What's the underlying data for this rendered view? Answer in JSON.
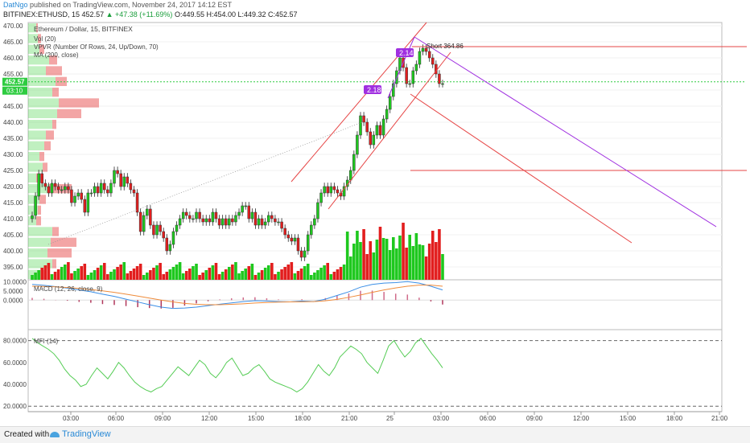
{
  "header": {
    "author": "DatNgo",
    "published": "published on TradingView.com, November 24, 2017 14:12 EST",
    "symbol": "BITFINEX:ETHUSD, 15",
    "last": "452.57",
    "change": "+47.38 (+11.69%)",
    "ohlc": "O:449.55 H:454.00 L:449.32 C:452.57"
  },
  "footer": {
    "made_with": "Created with",
    "brand": "TradingView"
  },
  "chart_data": [
    {
      "type": "candlestick",
      "title": "Ethereum / Dollar, 15, BITFINEX",
      "indicators": [
        "Vol (20)",
        "VPVR (Number Of Rows, 24, Up/Down, 70)",
        "MA (200, close)"
      ],
      "ylim": [
        391,
        471
      ],
      "y_ticks": [
        395,
        400,
        405,
        410,
        415,
        420,
        425,
        430,
        435,
        440,
        445,
        450,
        455,
        460,
        465,
        470
      ],
      "x_ticks": [
        "03:00",
        "06:00",
        "09:00",
        "12:00",
        "15:00",
        "18:00",
        "21:00",
        "25",
        "03:00",
        "06:00",
        "09:00",
        "12:00",
        "15:00",
        "18:00",
        "21:00"
      ],
      "last_price": "452.57",
      "countdown": "03:10",
      "annotations": [
        "Short 364.86",
        "2.14",
        "2.18"
      ],
      "colors": {
        "up": "#1ec81e",
        "down": "#e21e1e",
        "channel": "#e64545",
        "projection": "#a030e0",
        "price_line": "#2ecc40"
      },
      "close": [
        411,
        417,
        424,
        421,
        420,
        418,
        421,
        420,
        419,
        419,
        420,
        419,
        415,
        417,
        418,
        416,
        412,
        418,
        418,
        420,
        418,
        421,
        419,
        418,
        421,
        425,
        424,
        420,
        423,
        421,
        419,
        418,
        412,
        406,
        411,
        413,
        408,
        405,
        408,
        406,
        404,
        400,
        402,
        406,
        408,
        410,
        412,
        411,
        410,
        410,
        412,
        410,
        409,
        410,
        409,
        412,
        410,
        408,
        410,
        408,
        410,
        409,
        411,
        412,
        414,
        414,
        410,
        412,
        408,
        410,
        408,
        409,
        411,
        410,
        409,
        409,
        407,
        405,
        404,
        403,
        404,
        400,
        398,
        400,
        405,
        408,
        410,
        415,
        418,
        420,
        418,
        420,
        419,
        418,
        417,
        420,
        422,
        425,
        430,
        436,
        442,
        440,
        437,
        433,
        436,
        439,
        436,
        441,
        444,
        448,
        452,
        456,
        460,
        457,
        452,
        452,
        456,
        458,
        462,
        463,
        462,
        460,
        458,
        455,
        452,
        452
      ]
    },
    {
      "type": "line",
      "title": "MACD (12, 26, close, 9)",
      "ylim": [
        -16,
        11
      ],
      "y_ticks": [
        "10.0000",
        "5.0000",
        "0.0000"
      ],
      "series": [
        {
          "name": "MACD",
          "values": [
            8.5,
            8,
            7.3,
            6.5,
            5.5,
            4.5,
            3.2,
            2,
            0.5,
            -1,
            -2.5,
            -3.8,
            -4.5,
            -4.3,
            -3.8,
            -3,
            -2.2,
            -1.5,
            -0.8,
            -0.3,
            -0.5,
            -0.8,
            -1,
            -0.5,
            -0.8,
            0.5,
            2.5,
            4.5,
            7,
            8.5,
            9.2,
            9.5,
            10,
            9.2,
            7.5,
            5.5
          ]
        },
        {
          "name": "Signal",
          "values": [
            7.5,
            7.4,
            7.2,
            6.8,
            6.3,
            5.7,
            5,
            4.2,
            3.2,
            2.2,
            1.1,
            0,
            -1,
            -1.8,
            -2.3,
            -2.5,
            -2.5,
            -2.3,
            -2,
            -1.6,
            -1.3,
            -1.1,
            -1,
            -0.9,
            -0.8,
            -0.4,
            0.4,
            1.5,
            2.8,
            4.2,
            5.5,
            6.6,
            7.5,
            8.1,
            8.1,
            7.5
          ]
        }
      ]
    },
    {
      "type": "line",
      "title": "MFI (14)",
      "ylim": [
        15,
        90
      ],
      "y_ticks": [
        "80.0000",
        "60.0000",
        "40.0000",
        "20.0000"
      ],
      "series": [
        {
          "name": "MFI",
          "values": [
            82,
            78,
            75,
            72,
            68,
            62,
            54,
            48,
            44,
            38,
            40,
            48,
            55,
            50,
            45,
            52,
            60,
            55,
            48,
            42,
            38,
            35,
            33,
            36,
            38,
            44,
            50,
            56,
            52,
            48,
            55,
            62,
            58,
            50,
            46,
            52,
            60,
            64,
            56,
            48,
            50,
            55,
            58,
            52,
            45,
            42,
            40,
            38,
            36,
            33,
            36,
            42,
            50,
            58,
            52,
            48,
            55,
            65,
            70,
            75,
            72,
            68,
            60,
            55,
            50,
            62,
            75,
            80,
            72,
            65,
            70,
            78,
            82,
            75,
            68,
            62,
            55
          ]
        }
      ]
    }
  ]
}
